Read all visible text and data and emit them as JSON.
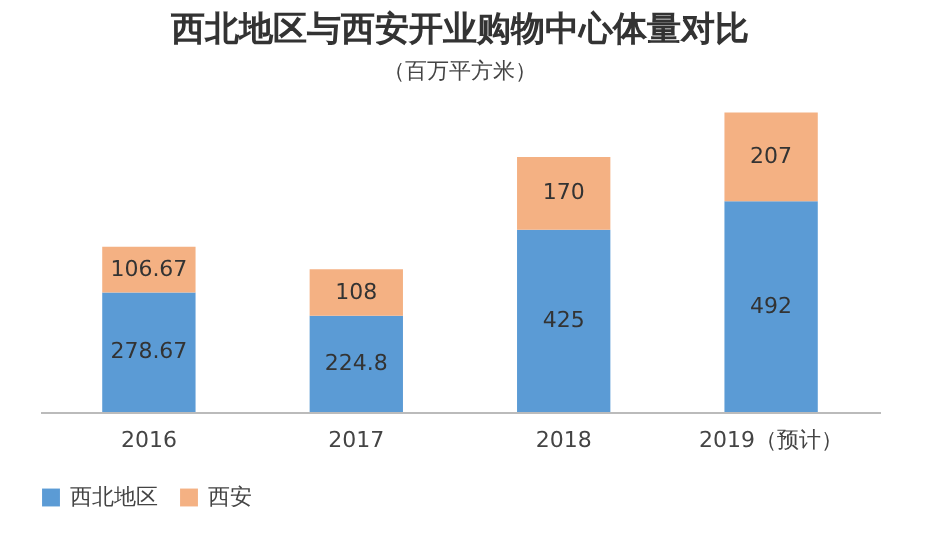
{
  "chart_data": {
    "type": "bar",
    "stacked": true,
    "title": "西北地区与西安开业购物中心体量对比",
    "subtitle": "（百万平方米）",
    "categories": [
      "2016",
      "2017",
      "2018",
      "2019（预计）"
    ],
    "series": [
      {
        "name": "西北地区",
        "color": "#5b9bd5",
        "values": [
          278.67,
          224.8,
          425,
          492
        ]
      },
      {
        "name": "西安",
        "color": "#f4b183",
        "values": [
          106.67,
          108,
          170,
          207
        ]
      }
    ],
    "data_labels": true,
    "legend": "bottom",
    "tick_labels": "x",
    "grid": false
  }
}
